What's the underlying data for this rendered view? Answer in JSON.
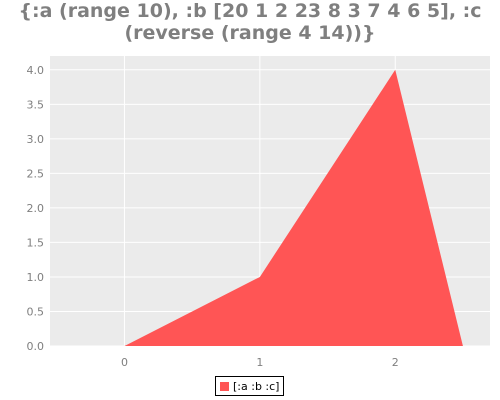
{
  "chart_data": {
    "type": "area",
    "title_lines": [
      "{:a (range 10), :b [20 1 2 23 8 3 7 4 6 5], :c",
      "(reverse (range 4 14))}"
    ],
    "x": [
      0,
      1,
      2,
      2.5
    ],
    "series": [
      {
        "name": "[:a :b :c]",
        "values": [
          0,
          1,
          4,
          0
        ],
        "color": "#ff5555"
      }
    ],
    "xlim": [
      -0.55,
      2.7
    ],
    "ylim": [
      0,
      4.2
    ],
    "xticks": [
      "0",
      "1",
      "2"
    ],
    "yticks": [
      "0.0",
      "0.5",
      "1.0",
      "1.5",
      "2.0",
      "2.5",
      "3.0",
      "3.5",
      "4.0"
    ],
    "grid": true,
    "background": "#ebebeb",
    "legend_placement": "bottom-center"
  }
}
